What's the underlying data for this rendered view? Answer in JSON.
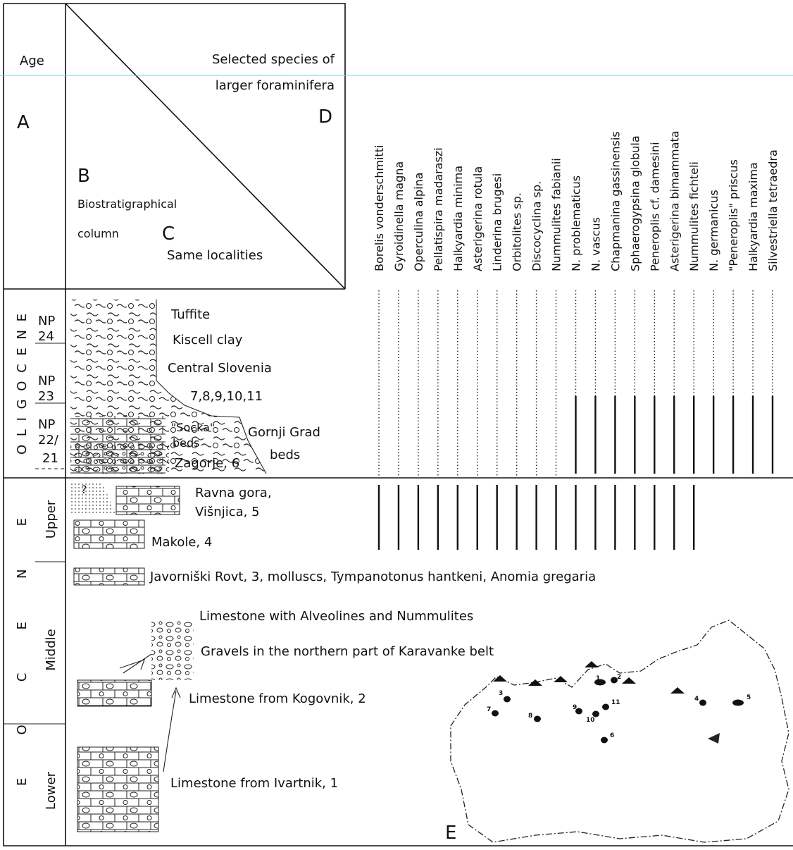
{
  "header": {
    "age": "Age",
    "letter_a": "A",
    "species_heading": [
      "Selected species of",
      "larger foraminifera"
    ],
    "letter_d": "D",
    "letter_b": "B",
    "column_heading": [
      "Biostratigraphical",
      "column"
    ],
    "letter_c": "C",
    "localities_heading": "Same localities"
  },
  "species": [
    "Borelis vonderschmitti",
    "Gyroidinella magna",
    "Operculina alpina",
    "Pellatispira madaraszi",
    "Halkyardia minima",
    "Asterigerina rotula",
    "Linderina brugesi",
    "Orbitolites sp.",
    "Discocyclina sp.",
    "Nummulites fabianii",
    "N. problematicus",
    "N. vascus",
    "Chapmanina gassinensis",
    "Sphaerogypsina globula",
    "Peneroplis cf. damesini",
    "Asterigerina bimammata",
    "Nummulites fichteli",
    "N. germanicus",
    "\"Peneroplis\" priscus",
    "Halkyardia maxima",
    "Silvestriella tetraedra"
  ],
  "oligocene": {
    "epoch": "OLIGOCENE",
    "zones": [
      [
        "NP",
        "24"
      ],
      [
        "NP",
        "23"
      ],
      [
        "NP",
        "22/",
        "21"
      ]
    ],
    "labels": [
      "Tuffite",
      "Kiscell clay",
      "Central Slovenia",
      "7,8,9,10,11",
      "\"Socka\"",
      "beds",
      "Gornji Grad",
      "beds",
      "Zagorje, 6"
    ]
  },
  "eocene": {
    "epoch": "EOCENE",
    "subdivisions": [
      "Upper",
      "Middle",
      "Lower"
    ],
    "uncertain_mark": "?",
    "labels": [
      "Ravna gora,",
      "Višnjica, 5",
      "Makole, 4",
      "Javorniški Rovt, 3, molluscs, Tympanotonus hantkeni, Anomia gregaria",
      "Limestone with Alveolines and Nummulites",
      "Gravels in the northern part of Karavanke belt",
      "Limestone from Kogovnik, 2",
      "Limestone from Ivartnik, 1"
    ]
  },
  "map": {
    "letter": "E",
    "localities": [
      "1",
      "2",
      "3",
      "4",
      "5",
      "6",
      "7",
      "8",
      "9",
      "10",
      "11"
    ]
  }
}
